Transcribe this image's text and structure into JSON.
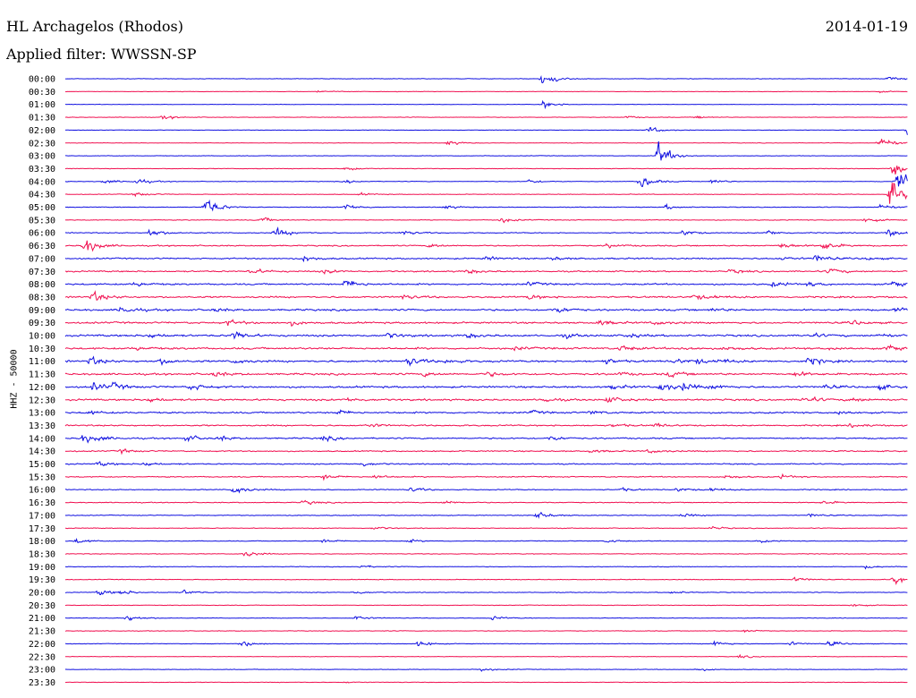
{
  "header": {
    "station": "HL Archagelos (Rhodos)",
    "date": "2014-01-19",
    "filter": "Applied filter: WWSSN-SP"
  },
  "channel_label": "HHZ - 50000",
  "colors": {
    "blue": "#1010e0",
    "red": "#f01050"
  },
  "chart_data": {
    "type": "line",
    "subtype": "helicorder",
    "row_labels": [
      "00:00",
      "00:30",
      "01:00",
      "01:30",
      "02:00",
      "02:30",
      "03:00",
      "03:30",
      "04:00",
      "04:30",
      "05:00",
      "05:30",
      "06:00",
      "06:30",
      "07:00",
      "07:30",
      "08:00",
      "08:30",
      "09:00",
      "09:30",
      "10:00",
      "10:30",
      "11:00",
      "11:30",
      "12:00",
      "12:30",
      "13:00",
      "13:30",
      "14:00",
      "14:30",
      "15:00",
      "15:30",
      "16:00",
      "16:30",
      "17:00",
      "17:30",
      "18:00",
      "18:30",
      "19:00",
      "19:30",
      "20:00",
      "20:30",
      "21:00",
      "21:30",
      "22:00",
      "22:30",
      "23:00",
      "23:30"
    ],
    "row_colors": [
      "blue",
      "red"
    ],
    "row_noise": [
      1,
      1,
      1,
      1,
      1,
      1.1,
      1.1,
      1.1,
      1.3,
      1.3,
      1.4,
      1.6,
      2,
      2.6,
      3,
      3,
      3.4,
      3.6,
      3.8,
      3.8,
      4,
      4,
      4,
      4,
      4,
      3.8,
      3.4,
      3,
      3,
      2.6,
      2.4,
      2.2,
      2,
      1.8,
      1.6,
      1.5,
      1.4,
      1.4,
      1.4,
      1.4,
      1.4,
      1.3,
      1.3,
      1.2,
      1.2,
      1.1,
      1.1,
      1
    ],
    "events_minutes": [
      [
        0,
        17,
        17
      ],
      [
        0,
        29.3,
        6
      ],
      [
        1,
        9,
        3
      ],
      [
        1,
        29,
        2
      ],
      [
        2,
        17,
        10
      ],
      [
        2,
        30,
        3
      ],
      [
        3,
        3.5,
        5
      ],
      [
        3,
        20,
        3
      ],
      [
        3,
        22.5,
        3
      ],
      [
        4,
        20.8,
        8
      ],
      [
        4,
        30,
        14
      ],
      [
        5,
        13.6,
        6
      ],
      [
        5,
        29,
        18
      ],
      [
        6,
        21.1,
        30
      ],
      [
        7,
        10,
        6
      ],
      [
        7,
        29.5,
        20
      ],
      [
        8,
        1.4,
        5
      ],
      [
        8,
        2.5,
        8
      ],
      [
        8,
        10,
        4
      ],
      [
        8,
        20.5,
        16
      ],
      [
        8,
        23,
        6
      ],
      [
        8,
        16.5,
        5
      ],
      [
        8,
        29.6,
        34
      ],
      [
        9,
        2.5,
        6
      ],
      [
        9,
        10.5,
        3
      ],
      [
        9,
        29.4,
        38
      ],
      [
        10,
        5,
        24
      ],
      [
        10,
        10,
        8
      ],
      [
        10,
        13.5,
        5
      ],
      [
        10,
        21.4,
        6
      ],
      [
        10,
        29,
        9
      ],
      [
        11,
        7,
        6
      ],
      [
        11,
        15.5,
        7
      ],
      [
        11,
        28.5,
        6
      ],
      [
        12,
        3,
        10
      ],
      [
        12,
        7.5,
        12
      ],
      [
        12,
        12,
        6
      ],
      [
        12,
        22,
        7
      ],
      [
        12,
        25,
        6
      ],
      [
        12,
        29.3,
        9
      ],
      [
        13,
        0.7,
        20
      ],
      [
        13,
        13,
        5
      ],
      [
        13,
        19.3,
        5
      ],
      [
        13,
        25.5,
        8
      ],
      [
        13,
        27,
        12
      ],
      [
        14,
        8.5,
        8
      ],
      [
        14,
        15,
        5
      ],
      [
        14,
        17.3,
        5
      ],
      [
        14,
        25.5,
        4
      ],
      [
        14,
        26.7,
        10
      ],
      [
        14,
        28.5,
        4
      ],
      [
        15,
        6.6,
        8
      ],
      [
        15,
        9.2,
        5
      ],
      [
        15,
        14.3,
        6
      ],
      [
        15,
        23.7,
        5
      ],
      [
        15,
        27.2,
        7
      ],
      [
        16,
        2.5,
        5
      ],
      [
        16,
        10,
        12
      ],
      [
        16,
        16.5,
        5
      ],
      [
        16,
        25.2,
        6
      ],
      [
        16,
        26.5,
        5
      ],
      [
        16,
        29.5,
        9
      ],
      [
        17,
        1,
        12
      ],
      [
        17,
        12,
        6
      ],
      [
        17,
        16.5,
        6
      ],
      [
        17,
        22.4,
        7
      ],
      [
        17,
        23,
        4
      ],
      [
        18,
        2,
        9
      ],
      [
        18,
        5.3,
        4
      ],
      [
        18,
        17.5,
        8
      ],
      [
        18,
        23,
        4
      ],
      [
        18,
        29.5,
        6
      ],
      [
        19,
        5.8,
        7
      ],
      [
        19,
        8,
        6
      ],
      [
        19,
        19,
        6
      ],
      [
        19,
        21,
        5
      ],
      [
        19,
        28,
        6
      ],
      [
        20,
        3,
        6
      ],
      [
        20,
        6,
        12
      ],
      [
        20,
        11.5,
        6
      ],
      [
        20,
        14.3,
        6
      ],
      [
        20,
        17.8,
        5
      ],
      [
        20,
        20,
        5
      ],
      [
        20,
        26.5,
        5
      ],
      [
        20,
        29,
        5
      ],
      [
        21,
        2.5,
        4
      ],
      [
        21,
        16,
        4
      ],
      [
        21,
        19.8,
        7
      ],
      [
        21,
        22,
        5
      ],
      [
        21,
        23.5,
        5
      ],
      [
        21,
        27.3,
        4
      ],
      [
        21,
        29.3,
        9
      ],
      [
        22,
        0.9,
        10
      ],
      [
        22,
        3.4,
        7
      ],
      [
        22,
        6,
        6
      ],
      [
        22,
        12.2,
        11
      ],
      [
        22,
        13.6,
        6
      ],
      [
        22,
        19.2,
        7
      ],
      [
        22,
        21.7,
        6
      ],
      [
        22,
        22.5,
        6
      ],
      [
        22,
        23.3,
        6
      ],
      [
        22,
        26.5,
        10
      ],
      [
        23,
        5.3,
        6
      ],
      [
        23,
        12.8,
        5
      ],
      [
        23,
        15,
        5
      ],
      [
        23,
        19.7,
        4
      ],
      [
        23,
        21.5,
        6
      ],
      [
        23,
        26,
        6
      ],
      [
        24,
        1,
        10
      ],
      [
        24,
        1.7,
        8
      ],
      [
        24,
        4.5,
        8
      ],
      [
        24,
        19.5,
        5
      ],
      [
        24,
        21.2,
        12
      ],
      [
        24,
        22,
        10
      ],
      [
        24,
        23,
        6
      ],
      [
        24,
        27,
        5
      ],
      [
        24,
        29,
        6
      ],
      [
        25,
        3,
        6
      ],
      [
        25,
        10,
        5
      ],
      [
        25,
        17,
        6
      ],
      [
        25,
        19.3,
        8
      ],
      [
        25,
        26.3,
        8
      ],
      [
        25,
        28,
        6
      ],
      [
        26,
        0.8,
        5
      ],
      [
        26,
        9.7,
        6
      ],
      [
        26,
        16.6,
        4
      ],
      [
        26,
        18.7,
        5
      ],
      [
        26,
        27.5,
        6
      ],
      [
        27,
        10.8,
        5
      ],
      [
        27,
        19.5,
        4
      ],
      [
        27,
        21,
        5
      ],
      [
        27,
        28,
        5
      ],
      [
        28,
        0.6,
        9
      ],
      [
        28,
        0.8,
        8
      ],
      [
        28,
        1.2,
        6
      ],
      [
        28,
        4.3,
        8
      ],
      [
        28,
        5.5,
        6
      ],
      [
        28,
        9.2,
        6
      ],
      [
        28,
        17.3,
        6
      ],
      [
        29,
        2,
        5
      ],
      [
        29,
        18.7,
        4
      ],
      [
        29,
        20.8,
        5
      ],
      [
        30,
        1.2,
        6
      ],
      [
        30,
        2.8,
        6
      ],
      [
        30,
        10.6,
        5
      ],
      [
        31,
        9.2,
        7
      ],
      [
        31,
        11,
        5
      ],
      [
        31,
        23.5,
        5
      ],
      [
        31,
        25.5,
        5
      ],
      [
        32,
        6,
        12
      ],
      [
        32,
        12.3,
        6
      ],
      [
        32,
        19.8,
        4
      ],
      [
        32,
        21.8,
        5
      ],
      [
        32,
        23,
        5
      ],
      [
        33,
        8.5,
        6
      ],
      [
        33,
        13.5,
        5
      ],
      [
        33,
        27,
        5
      ],
      [
        34,
        16.8,
        10
      ],
      [
        34,
        22,
        5
      ],
      [
        34,
        26.5,
        5
      ],
      [
        35,
        11,
        4
      ],
      [
        35,
        23,
        4
      ],
      [
        36,
        0.4,
        6
      ],
      [
        36,
        9.2,
        5
      ],
      [
        36,
        12.2,
        4
      ],
      [
        36,
        19.3,
        4
      ],
      [
        36,
        24.7,
        4
      ],
      [
        37,
        6.4,
        8
      ],
      [
        38,
        10.5,
        4
      ],
      [
        38,
        28.5,
        4
      ],
      [
        39,
        26,
        6
      ],
      [
        39,
        29.5,
        12
      ],
      [
        40,
        1.2,
        8
      ],
      [
        40,
        2,
        6
      ],
      [
        40,
        4.2,
        6
      ],
      [
        40,
        10.3,
        4
      ],
      [
        40,
        21.6,
        4
      ],
      [
        41,
        28,
        4
      ],
      [
        42,
        2.2,
        8
      ],
      [
        42,
        10.3,
        6
      ],
      [
        42,
        15.2,
        5
      ],
      [
        43,
        24.2,
        4
      ],
      [
        44,
        6.3,
        9
      ],
      [
        44,
        12.6,
        8
      ],
      [
        44,
        23.1,
        7
      ],
      [
        44,
        25.8,
        5
      ],
      [
        44,
        27.2,
        7
      ],
      [
        45,
        24,
        4
      ],
      [
        46,
        14.8,
        5
      ],
      [
        46,
        22.5,
        4
      ],
      [
        47,
        10,
        2
      ]
    ]
  }
}
